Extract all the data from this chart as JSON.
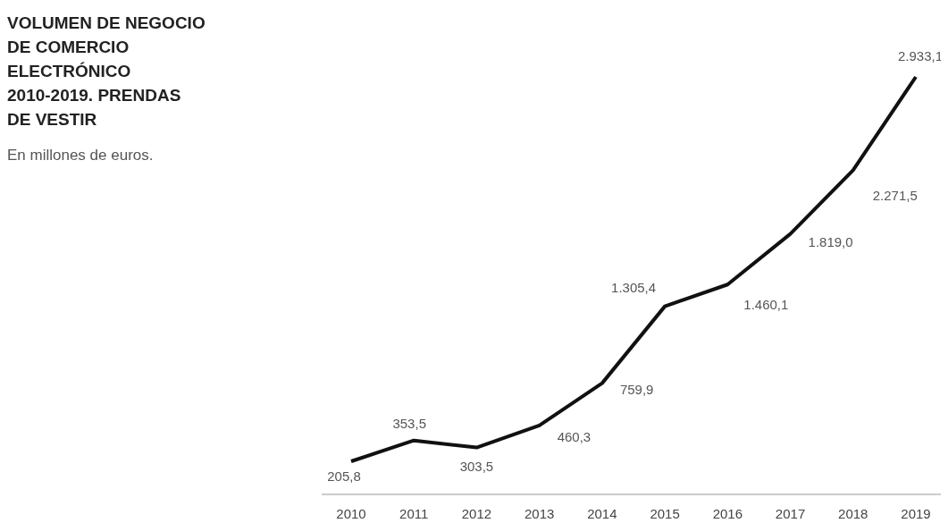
{
  "chart_data": {
    "type": "line",
    "title": "VOLUMEN DE NEGOCIO DE COMERCIO ELECTRÓNICO 2010-2019. PRENDAS DE VESTIR",
    "subtitle": "En millones de euros.",
    "categories": [
      "2010",
      "2011",
      "2012",
      "2013",
      "2014",
      "2015",
      "2016",
      "2017",
      "2018",
      "2019"
    ],
    "series": [
      {
        "color": "#111111",
        "values": [
          205.8,
          353.5,
          303.5,
          460.3,
          759.9,
          1305.4,
          1460.1,
          1819.0,
          2271.5,
          2933.1
        ],
        "value_labels": [
          "205,8",
          "353,5",
          "303,5",
          "460,3",
          "759,9",
          "1.305,4",
          "1.460,1",
          "1.819,0",
          "2.271,5",
          "2.933,1"
        ]
      }
    ],
    "marker": "none"
  }
}
